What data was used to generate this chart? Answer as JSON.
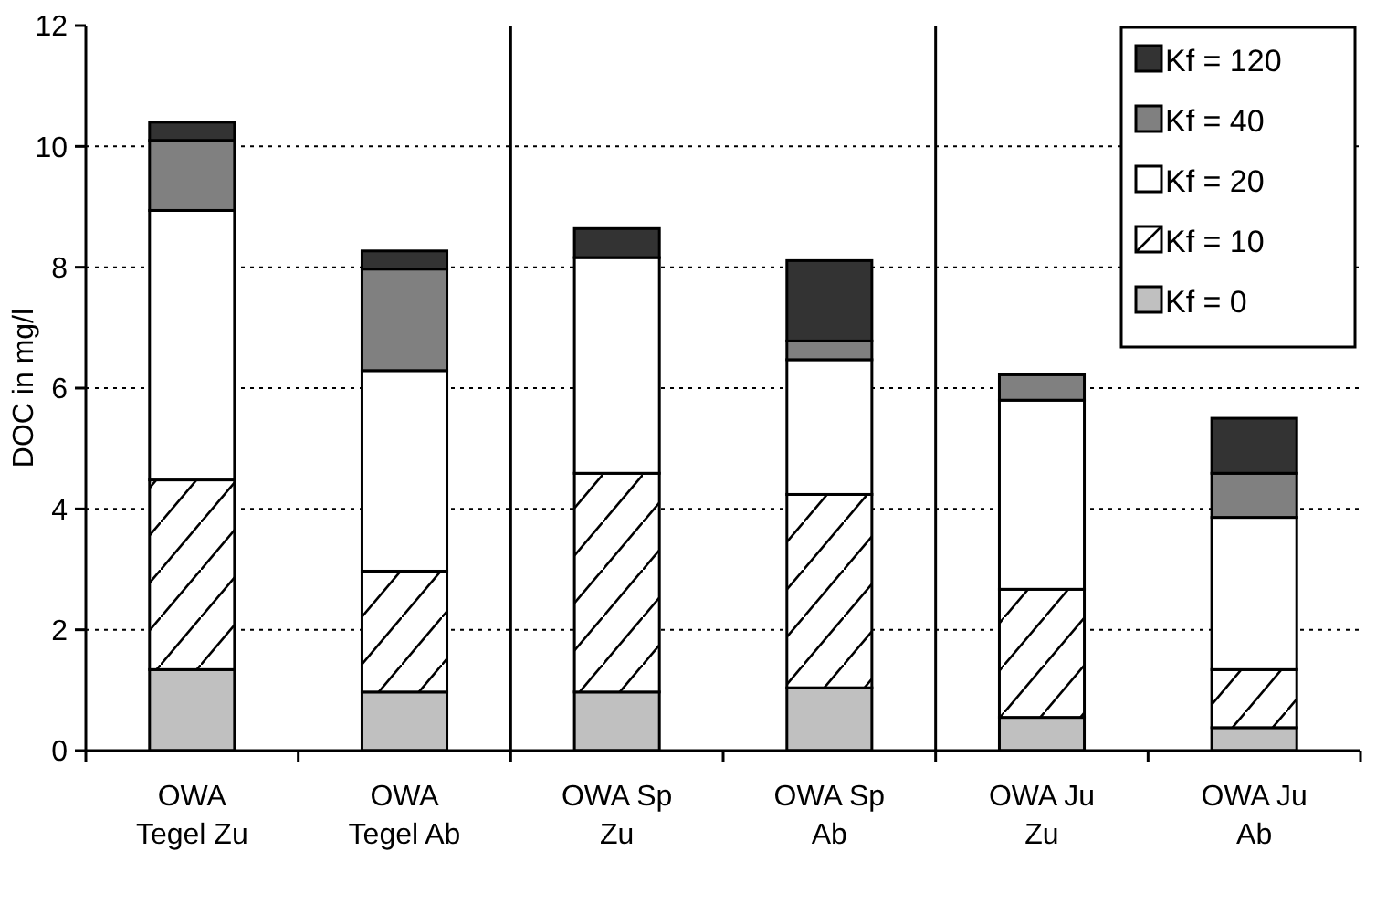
{
  "chart_data": {
    "type": "bar",
    "stacked": true,
    "ylabel": "DOC in mg/l",
    "categories": [
      "OWA Tegel Zu",
      "OWA Tegel Ab",
      "OWA Sp Zu",
      "OWA Sp Ab",
      "OWA Ju Zu",
      "OWA Ju Ab"
    ],
    "ylim": [
      0,
      12
    ],
    "yticks": [
      0,
      2,
      4,
      6,
      8,
      10,
      12
    ],
    "grid": "y",
    "legend": "top right",
    "series": [
      {
        "name": "Kf = 0",
        "color": "#c0c0c0",
        "values": [
          1.34,
          0.97,
          0.97,
          1.04,
          0.55,
          0.38
        ]
      },
      {
        "name": "Kf = 10",
        "color": "#ffffff",
        "values": [
          3.14,
          2.0,
          3.62,
          3.2,
          2.12,
          0.96
        ]
      },
      {
        "name": "Kf = 20",
        "color": "#ffffff",
        "values": [
          4.46,
          3.32,
          3.57,
          2.23,
          3.13,
          2.52
        ]
      },
      {
        "name": "Kf = 40",
        "color": "#808080",
        "values": [
          1.16,
          1.68,
          0,
          0.31,
          0.42,
          0.73
        ]
      },
      {
        "name": "Kf = 120",
        "color": "#333333",
        "values": [
          0.3,
          0.3,
          0.48,
          1.33,
          0,
          0.91
        ]
      }
    ]
  }
}
